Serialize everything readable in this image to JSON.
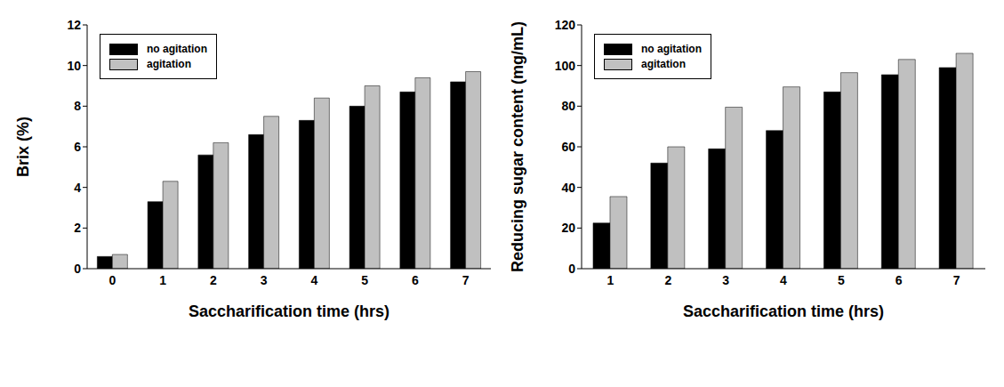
{
  "chart_data": [
    {
      "type": "bar",
      "x_label": "Saccharification time (hrs)",
      "y_label": "Brix (%)",
      "categories": [
        "0",
        "1",
        "2",
        "3",
        "4",
        "5",
        "6",
        "7"
      ],
      "series": [
        {
          "name": "no agitation",
          "color": "#000000",
          "values": [
            0.6,
            3.3,
            5.6,
            6.6,
            7.3,
            8.0,
            8.7,
            9.2
          ]
        },
        {
          "name": "agitation",
          "color": "#c0c0c0",
          "values": [
            0.7,
            4.3,
            6.2,
            7.5,
            8.4,
            9.0,
            9.4,
            9.7
          ]
        }
      ],
      "ylim": [
        0,
        12
      ],
      "yticks": [
        0,
        2,
        4,
        6,
        8,
        10,
        12
      ],
      "legend": "upper left",
      "grid": false
    },
    {
      "type": "bar",
      "x_label": "Saccharification time (hrs)",
      "y_label": "Reducing sugar content (mg/mL)",
      "categories": [
        "1",
        "2",
        "3",
        "4",
        "5",
        "6",
        "7"
      ],
      "series": [
        {
          "name": "no agitation",
          "color": "#000000",
          "values": [
            22.5,
            52,
            59,
            68,
            87,
            95.5,
            99
          ]
        },
        {
          "name": "agitation",
          "color": "#c0c0c0",
          "values": [
            35.5,
            60,
            79.5,
            89.5,
            96.5,
            103,
            106
          ]
        }
      ],
      "ylim": [
        0,
        120
      ],
      "yticks": [
        0,
        20,
        40,
        60,
        80,
        100,
        120
      ],
      "legend": "upper left",
      "grid": false
    }
  ]
}
